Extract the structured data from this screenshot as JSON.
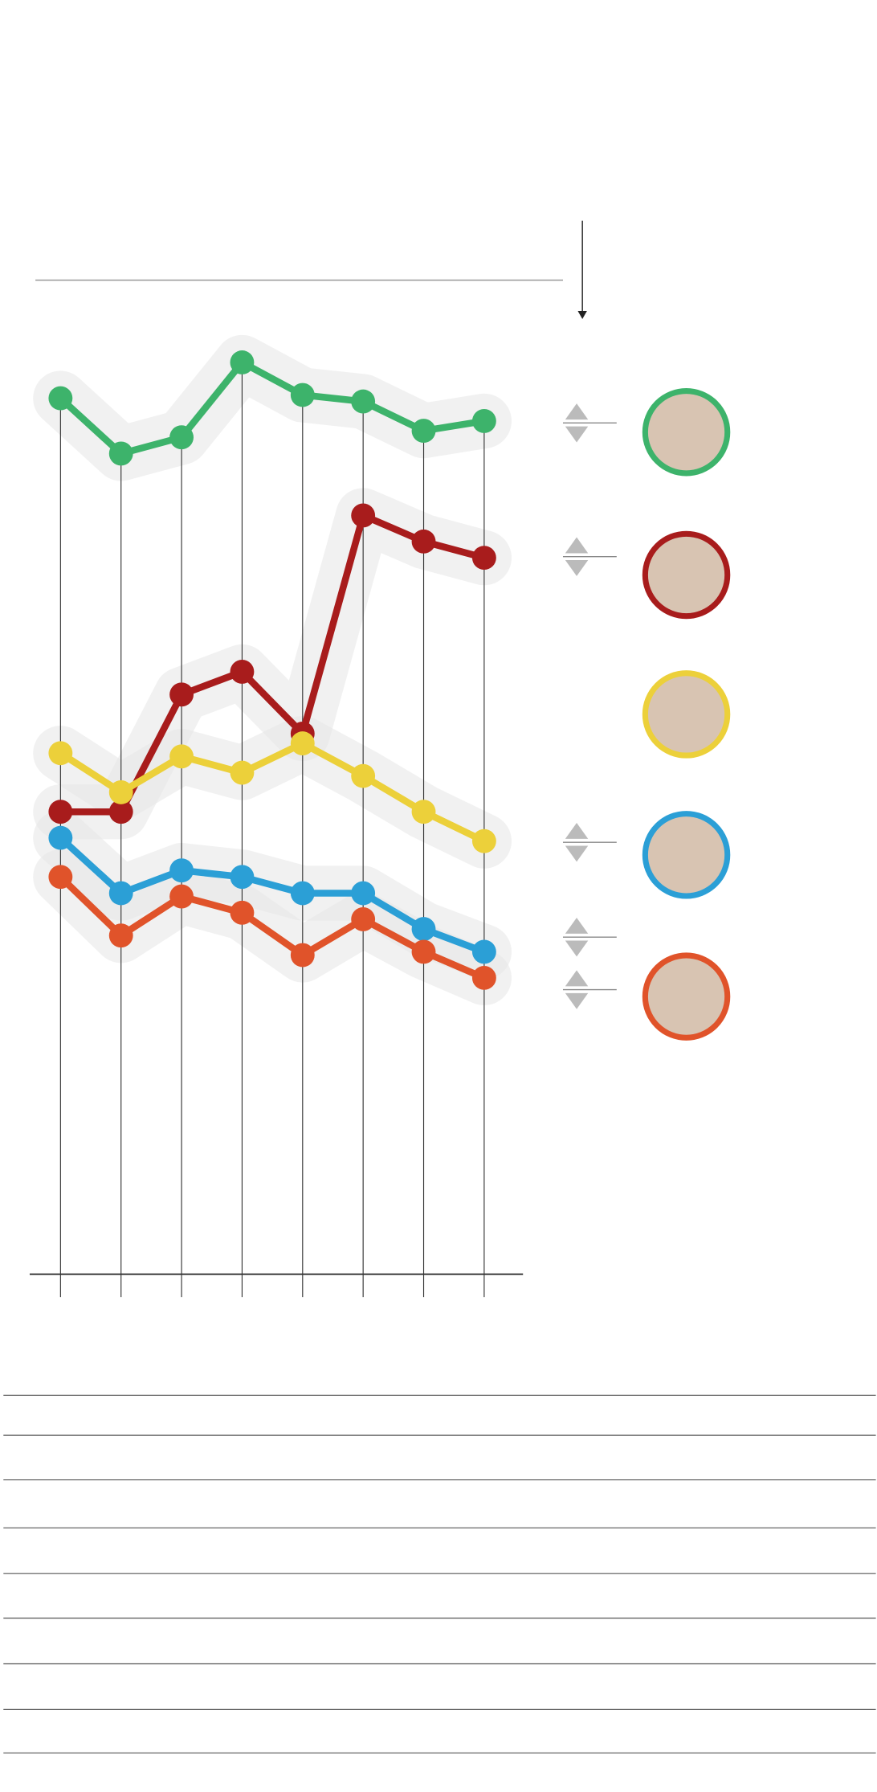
{
  "chart_data": {
    "type": "line",
    "categories": [
      null,
      null,
      null,
      null,
      null,
      null,
      null,
      null
    ],
    "series": [
      {
        "color": "#3db36b",
        "values": [
          26.9,
          25.2,
          25.7,
          28.0,
          27.0,
          26.8,
          25.9,
          26.2
        ]
      },
      {
        "color": "#a81c1c",
        "values": [
          14.2,
          14.2,
          17.8,
          18.5,
          16.6,
          23.3,
          22.5,
          22.0
        ]
      },
      {
        "color": "#ecd03a",
        "values": [
          16.0,
          14.8,
          15.9,
          15.4,
          16.3,
          15.3,
          14.2,
          13.3
        ]
      },
      {
        "color": "#2b9fd6",
        "values": [
          13.4,
          11.7,
          12.4,
          12.2,
          11.7,
          11.7,
          10.6,
          9.9
        ]
      },
      {
        "color": "#e0532a",
        "values": [
          12.2,
          10.4,
          11.6,
          11.1,
          9.8,
          10.9,
          9.9,
          9.1
        ]
      }
    ],
    "ylim": [
      0,
      30
    ]
  }
}
